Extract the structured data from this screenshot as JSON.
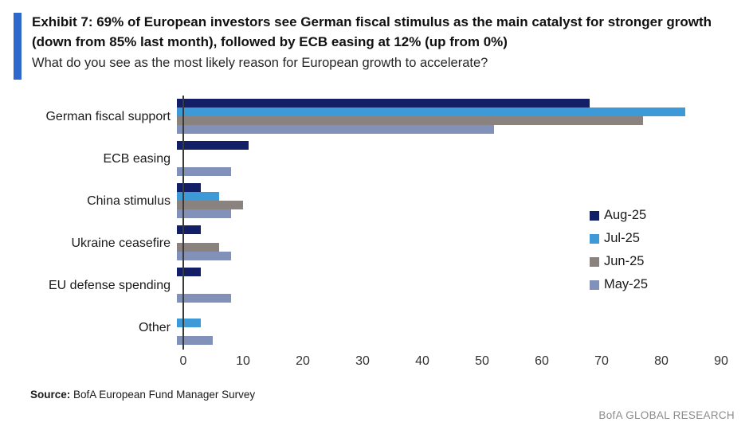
{
  "chart_data": {
    "type": "bar",
    "orientation": "horizontal",
    "title": "Exhibit 7: 69% of European investors see German fiscal stimulus as the main catalyst for stronger growth (down from 85% last month), followed by ECB easing at 12% (up from 0%)",
    "subtitle": "What do you see as the most likely reason for European growth to accelerate?",
    "categories": [
      "German fiscal support",
      "ECB easing",
      "China stimulus",
      "Ukraine ceasefire",
      "EU defense spending",
      "Other"
    ],
    "series": [
      {
        "name": "Aug-25",
        "color": "#121f66",
        "values": [
          69,
          12,
          4,
          4,
          4,
          0
        ]
      },
      {
        "name": "Jul-25",
        "color": "#3e99d7",
        "values": [
          85,
          0,
          7,
          0,
          0,
          4
        ]
      },
      {
        "name": "Jun-25",
        "color": "#8a827e",
        "values": [
          78,
          0,
          11,
          7,
          0,
          0
        ]
      },
      {
        "name": "May-25",
        "color": "#8191ba",
        "values": [
          53,
          9,
          9,
          9,
          9,
          6
        ]
      }
    ],
    "xlim": [
      0,
      92
    ],
    "xticks": [
      0,
      10,
      20,
      30,
      40,
      50,
      60,
      70,
      80,
      90
    ],
    "legend_position": "middle-right",
    "grid": false,
    "accent_color": "#2e68cc"
  },
  "footer": {
    "source_label": "Source:",
    "source_text": "BofA European Fund Manager Survey",
    "brand": "BofA GLOBAL RESEARCH"
  }
}
